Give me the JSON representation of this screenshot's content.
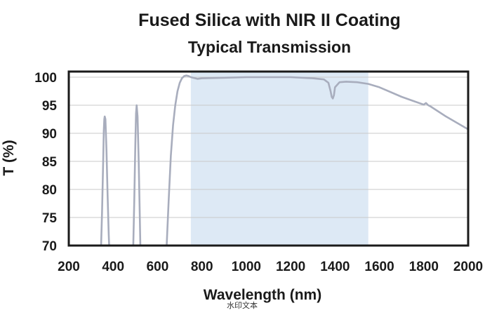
{
  "chart_data": {
    "type": "line",
    "title": "Fused Silica with NIR II Coating",
    "subtitle": "Typical Transmission",
    "xlabel": "Wavelength (nm)",
    "ylabel": "T (%)",
    "xlim": [
      200,
      2000
    ],
    "ylim": [
      70,
      101
    ],
    "x_ticks": [
      200,
      400,
      600,
      800,
      1000,
      1200,
      1400,
      1600,
      1800,
      2000
    ],
    "y_ticks": [
      100,
      95,
      90,
      85,
      80,
      75,
      70
    ],
    "grid": true,
    "design_band": [
      750,
      1550
    ],
    "colors": {
      "line": "#a8adbd",
      "band": "#dde9f5",
      "grid": "#c9c9c9",
      "frame": "#1a1a1a"
    },
    "series": [
      {
        "x": [
          345,
          350,
          355,
          358,
          360,
          362,
          365,
          370,
          375,
          380,
          383,
          490,
          495,
          500,
          503,
          506,
          510,
          515,
          520,
          523,
          640,
          650,
          660,
          670,
          680,
          690,
          700,
          710,
          720,
          730,
          740,
          750,
          760,
          780,
          800,
          900,
          1000,
          1100,
          1200,
          1300,
          1350,
          1370,
          1380,
          1385,
          1390,
          1395,
          1400,
          1420,
          1450,
          1500,
          1550,
          1600,
          1700,
          1750,
          1800,
          1810,
          1820,
          1830,
          1900,
          2000
        ],
        "y": [
          69,
          76,
          85,
          90.5,
          92.5,
          93,
          92.5,
          87,
          79,
          72,
          69,
          69,
          78,
          88,
          93.5,
          95,
          93,
          85,
          75,
          69,
          69,
          78,
          86,
          91.5,
          95,
          97.5,
          99,
          99.8,
          100.2,
          100.3,
          100.2,
          100,
          99.9,
          99.7,
          99.8,
          99.9,
          100,
          100,
          100,
          99.8,
          99.6,
          99,
          97.5,
          96.5,
          96.2,
          96.8,
          98.2,
          99.1,
          99.2,
          99.1,
          98.8,
          98.2,
          96.5,
          95.8,
          95.1,
          95.4,
          95.0,
          94.8,
          93.0,
          90.7
        ]
      }
    ]
  },
  "watermark": "水印文本"
}
